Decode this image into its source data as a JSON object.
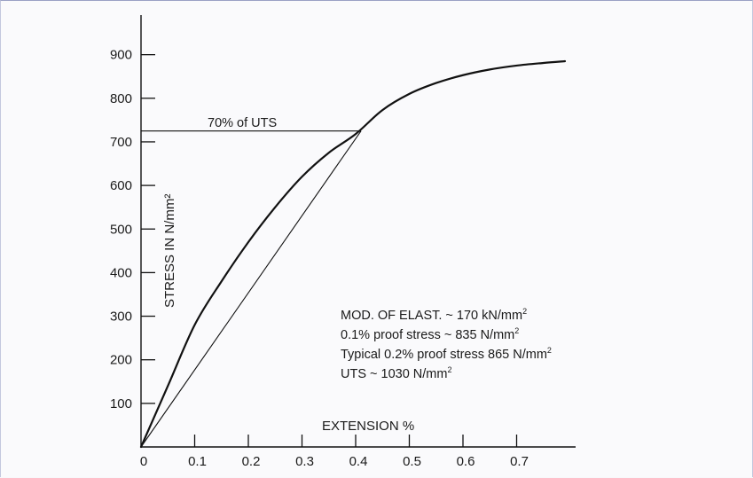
{
  "chart_data": {
    "type": "line",
    "xlabel": "EXTENSION %",
    "ylabel": "STRESS IN N/mm²",
    "xlim": [
      0,
      0.8
    ],
    "ylim": [
      0,
      950
    ],
    "x_ticks": [
      0,
      0.1,
      0.2,
      0.3,
      0.4,
      0.5,
      0.6,
      0.7
    ],
    "x_tick_labels": [
      "0",
      "0.1",
      "0.2",
      "0.3",
      "0.4",
      "0.5",
      "0.6",
      "0.7"
    ],
    "y_ticks": [
      100,
      200,
      300,
      400,
      500,
      600,
      700,
      800,
      900
    ],
    "y_tick_labels": [
      "100",
      "200",
      "300",
      "400",
      "500",
      "600",
      "700",
      "800",
      "900"
    ],
    "grid": false,
    "series": [
      {
        "x": [
          0,
          0.05,
          0.1,
          0.15,
          0.2,
          0.25,
          0.3,
          0.35,
          0.4,
          0.45,
          0.5,
          0.55,
          0.6,
          0.65,
          0.7,
          0.75,
          0.79
        ],
        "y": [
          0,
          140,
          280,
          380,
          470,
          550,
          620,
          675,
          718,
          773,
          810,
          835,
          853,
          866,
          875,
          881,
          885
        ]
      }
    ],
    "secant": {
      "x": [
        0,
        0.41
      ],
      "y": [
        0,
        725
      ]
    },
    "uts70_level": {
      "y": 725,
      "x_end": 0.41,
      "label": "70% of UTS"
    },
    "annotations": [
      {
        "text": "MOD. OF ELAST. ~ 170 kN/mm",
        "sup": "2"
      },
      {
        "text": "0.1% proof stress ~ 835 N/mm",
        "sup": "2"
      },
      {
        "text": "Typical 0.2% proof stress 865 N/mm",
        "sup": "2"
      },
      {
        "text": "UTS ~ 1030 N/mm",
        "sup": "2"
      }
    ]
  }
}
